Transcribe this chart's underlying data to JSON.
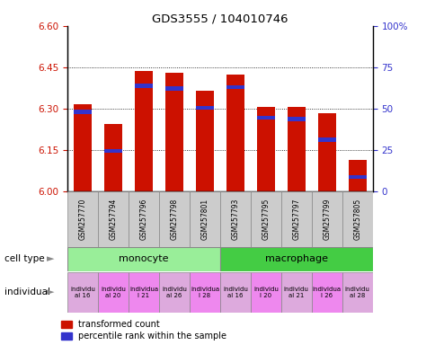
{
  "title": "GDS3555 / 104010746",
  "samples": [
    "GSM257770",
    "GSM257794",
    "GSM257796",
    "GSM257798",
    "GSM257801",
    "GSM257793",
    "GSM257795",
    "GSM257797",
    "GSM257799",
    "GSM257805"
  ],
  "bar_bottom": 6.0,
  "bar_tops": [
    6.315,
    6.245,
    6.435,
    6.43,
    6.365,
    6.425,
    6.305,
    6.305,
    6.285,
    6.115
  ],
  "blue_bottoms": [
    6.28,
    6.14,
    6.375,
    6.365,
    6.295,
    6.37,
    6.26,
    6.255,
    6.18,
    6.045
  ],
  "blue_tops": [
    6.295,
    6.155,
    6.39,
    6.38,
    6.31,
    6.385,
    6.275,
    6.27,
    6.195,
    6.06
  ],
  "ylim": [
    6.0,
    6.6
  ],
  "yticks_left": [
    6.0,
    6.15,
    6.3,
    6.45,
    6.6
  ],
  "yticks_right": [
    0,
    25,
    50,
    75,
    100
  ],
  "red_color": "#cc1100",
  "blue_color": "#3333cc",
  "bar_width": 0.6,
  "cell_types": [
    "monocyte",
    "macrophage"
  ],
  "cell_type_colors": [
    "#99ee99",
    "#44cc44"
  ],
  "individual_labels": [
    "individu\nal 16",
    "individu\nal 20",
    "individua\nl 21",
    "individu\nal 26",
    "individua\nl 28",
    "individu\nal 16",
    "individu\nl 20",
    "individu\nal 21",
    "individua\nl 26",
    "individu\nal 28"
  ],
  "individual_colors": [
    "#ddaadd",
    "#ee88ee",
    "#ee88ee",
    "#ddaadd",
    "#ee88ee",
    "#ddaadd",
    "#ee88ee",
    "#ddaadd",
    "#ee88ee",
    "#ddaadd"
  ],
  "legend_red": "transformed count",
  "legend_blue": "percentile rank within the sample",
  "xlabel_cell": "cell type",
  "xlabel_indiv": "individual",
  "sample_bg": "#cccccc"
}
